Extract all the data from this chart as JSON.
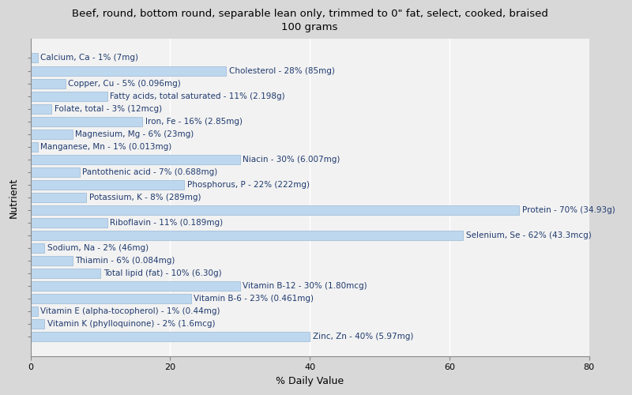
{
  "title": "Beef, round, bottom round, separable lean only, trimmed to 0\" fat, select, cooked, braised\n100 grams",
  "xlabel": "% Daily Value",
  "ylabel": "Nutrient",
  "xlim": [
    0,
    80
  ],
  "xticks": [
    0,
    20,
    40,
    60,
    80
  ],
  "background_color": "#d8d8d8",
  "plot_background_color": "#f2f2f2",
  "bar_color": "#bdd7ee",
  "bar_edge_color": "#9ab8d4",
  "text_color": "#1f3a6e",
  "nutrients": [
    "Calcium, Ca - 1% (7mg)",
    "Cholesterol - 28% (85mg)",
    "Copper, Cu - 5% (0.096mg)",
    "Fatty acids, total saturated - 11% (2.198g)",
    "Folate, total - 3% (12mcg)",
    "Iron, Fe - 16% (2.85mg)",
    "Magnesium, Mg - 6% (23mg)",
    "Manganese, Mn - 1% (0.013mg)",
    "Niacin - 30% (6.007mg)",
    "Pantothenic acid - 7% (0.688mg)",
    "Phosphorus, P - 22% (222mg)",
    "Potassium, K - 8% (289mg)",
    "Protein - 70% (34.93g)",
    "Riboflavin - 11% (0.189mg)",
    "Selenium, Se - 62% (43.3mcg)",
    "Sodium, Na - 2% (46mg)",
    "Thiamin - 6% (0.084mg)",
    "Total lipid (fat) - 10% (6.30g)",
    "Vitamin B-12 - 30% (1.80mcg)",
    "Vitamin B-6 - 23% (0.461mg)",
    "Vitamin E (alpha-tocopherol) - 1% (0.44mg)",
    "Vitamin K (phylloquinone) - 2% (1.6mcg)",
    "Zinc, Zn - 40% (5.97mg)"
  ],
  "values": [
    1,
    28,
    5,
    11,
    3,
    16,
    6,
    1,
    30,
    7,
    22,
    8,
    70,
    11,
    62,
    2,
    6,
    10,
    30,
    23,
    1,
    2,
    40
  ],
  "title_fontsize": 9.5,
  "label_fontsize": 7.5,
  "axis_label_fontsize": 9,
  "bar_height": 0.75
}
